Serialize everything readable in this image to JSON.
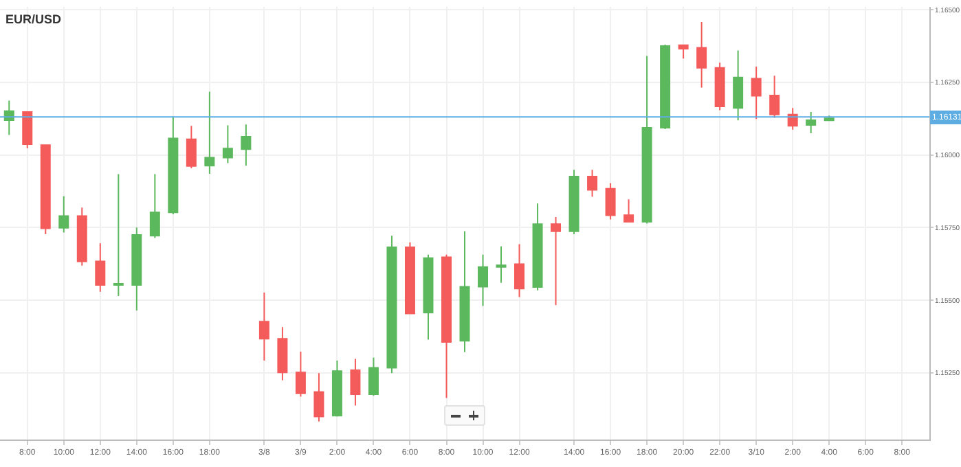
{
  "chart_data": {
    "type": "candlestick",
    "title": "EUR/USD",
    "categories": [
      null,
      "8:00",
      null,
      "10:00",
      null,
      "12:00",
      null,
      "14:00",
      null,
      "16:00",
      null,
      "18:00",
      null,
      null,
      "3/8",
      null,
      "3/9",
      null,
      "2:00",
      null,
      "4:00",
      null,
      "6:00",
      null,
      "8:00",
      null,
      "10:00",
      null,
      "12:00",
      null,
      null,
      "14:00",
      null,
      "16:00",
      null,
      "18:00",
      null,
      "20:00",
      null,
      "22:00",
      null,
      "3/10",
      null,
      "2:00",
      null,
      "4:00",
      null,
      "6:00",
      null,
      "8:00",
      null
    ],
    "ohlc": [
      [
        1.1612,
        1.16187,
        1.16069,
        1.16151
      ],
      [
        1.16148,
        1.16148,
        1.16023,
        1.16037
      ],
      [
        1.16034,
        1.16034,
        1.15727,
        1.15747
      ],
      [
        1.15749,
        1.15858,
        1.15733,
        1.1579
      ],
      [
        1.1579,
        1.15819,
        1.15619,
        1.15633
      ],
      [
        1.15634,
        1.15696,
        1.15529,
        1.15552
      ],
      [
        1.15552,
        1.15934,
        1.15514,
        1.15557
      ],
      [
        1.15552,
        1.1575,
        1.15464,
        1.15725
      ],
      [
        1.15722,
        1.15934,
        1.15714,
        1.15802
      ],
      [
        1.15802,
        1.16133,
        1.15796,
        1.16057
      ],
      [
        1.16054,
        1.161,
        1.15954,
        1.15962
      ],
      [
        1.15963,
        1.16218,
        1.15935,
        1.15991
      ],
      [
        1.15991,
        1.16102,
        1.15972,
        1.16022
      ],
      [
        1.1602,
        1.16105,
        1.15963,
        1.16063
      ],
      [
        1.15426,
        1.15526,
        1.15292,
        1.15367
      ],
      [
        1.15367,
        1.15407,
        1.15224,
        1.15251
      ],
      [
        1.15251,
        1.15323,
        1.15168,
        1.15179
      ],
      [
        1.15184,
        1.15249,
        1.15082,
        1.15099
      ],
      [
        1.15102,
        1.15292,
        1.15099,
        1.15256
      ],
      [
        1.15259,
        1.15298,
        1.15137,
        1.15176
      ],
      [
        1.15176,
        1.15302,
        1.15171,
        1.15267
      ],
      [
        1.15267,
        1.15722,
        1.15249,
        1.15682
      ],
      [
        1.15682,
        1.15699,
        1.15454,
        1.15454
      ],
      [
        1.15457,
        1.15657,
        1.15364,
        1.15645
      ],
      [
        1.15648,
        1.15657,
        1.15163,
        1.15356
      ],
      [
        1.1536,
        1.15737,
        1.15321,
        1.15546
      ],
      [
        1.15546,
        1.15657,
        1.1548,
        1.15614
      ],
      [
        1.15614,
        1.15685,
        1.1556,
        1.1562
      ],
      [
        1.15624,
        1.15693,
        1.15511,
        1.1554
      ],
      [
        1.15545,
        1.15833,
        1.15534,
        1.15762
      ],
      [
        1.15762,
        1.15786,
        1.15483,
        1.15737
      ],
      [
        1.15737,
        1.15949,
        1.15727,
        1.15926
      ],
      [
        1.15926,
        1.15949,
        1.15856,
        1.1588
      ],
      [
        1.15884,
        1.15903,
        1.15778,
        1.15792
      ],
      [
        1.15793,
        1.15847,
        1.1577,
        1.1577
      ],
      [
        1.1577,
        1.16341,
        1.15764,
        1.16094
      ],
      [
        1.16094,
        1.1638,
        1.16089,
        1.16375
      ],
      [
        1.16378,
        1.16378,
        1.16332,
        1.16366
      ],
      [
        1.16369,
        1.16458,
        1.16232,
        1.163
      ],
      [
        1.163,
        1.16318,
        1.16154,
        1.16167
      ],
      [
        1.16162,
        1.1636,
        1.16119,
        1.16267
      ],
      [
        1.16263,
        1.16304,
        1.16124,
        1.16204
      ],
      [
        1.16205,
        1.16273,
        1.16128,
        1.16139
      ],
      [
        1.16139,
        1.16162,
        1.16087,
        1.161
      ],
      [
        1.16103,
        1.16148,
        1.16075,
        1.1612
      ],
      [
        1.16119,
        1.16136,
        1.16119,
        1.16126
      ],
      null,
      null,
      null,
      null,
      null
    ],
    "colors": [
      "#5cb85c",
      "#f45b5b",
      "#f45b5b",
      "#5cb85c",
      "#f45b5b",
      "#f45b5b",
      "#5cb85c",
      "#5cb85c",
      "#5cb85c",
      "#5cb85c",
      "#f45b5b",
      "#5cb85c",
      "#5cb85c",
      "#5cb85c",
      "#f45b5b",
      "#f45b5b",
      "#f45b5b",
      "#f45b5b",
      "#5cb85c",
      "#f45b5b",
      "#5cb85c",
      "#5cb85c",
      "#f45b5b",
      "#5cb85c",
      "#f45b5b",
      "#5cb85c",
      "#5cb85c",
      "#5cb85c",
      "#f45b5b",
      "#5cb85c",
      "#f45b5b",
      "#5cb85c",
      "#f45b5b",
      "#f45b5b",
      "#f45b5b",
      "#5cb85c",
      "#5cb85c",
      "#f45b5b",
      "#f45b5b",
      "#f45b5b",
      "#5cb85c",
      "#f45b5b",
      "#f45b5b",
      "#f45b5b",
      "#5cb85c",
      "#5cb85c",
      null,
      null,
      null,
      null,
      null
    ],
    "ylim": [
      1.1502,
      1.1651
    ],
    "yticks": [
      {
        "value": 1.1525,
        "label": "1.15250"
      },
      {
        "value": 1.155,
        "label": "1.15500"
      },
      {
        "value": 1.1575,
        "label": "1.15750"
      },
      {
        "value": 1.16,
        "label": "1.16000"
      },
      {
        "value": 1.1625,
        "label": "1.16250"
      },
      {
        "value": 1.165,
        "label": "1.16500"
      }
    ],
    "ref_lines": [
      {
        "axis": "y",
        "value": 1.16131,
        "label": "1.16131",
        "color": "#5dade2"
      }
    ],
    "grid": true
  }
}
